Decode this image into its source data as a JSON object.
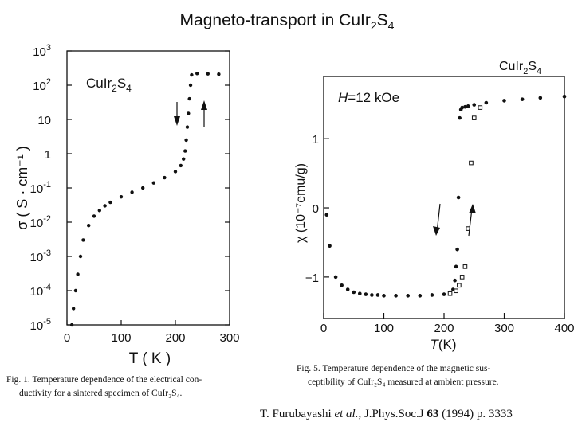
{
  "slide": {
    "title_prefix": "Magneto-transport in CuIr",
    "title_sub1": "2",
    "title_mid": "S",
    "title_sub2": "4",
    "citation_author": "T. Furubayashi",
    "citation_etal": " et al.",
    "citation_journal": ", J.Phys.Soc.J ",
    "citation_volume": "63",
    "citation_rest": " (1994) p. 3333"
  },
  "figure1": {
    "compound_main": "CuIr",
    "compound_sub1": "2",
    "compound_S": "S",
    "compound_sub2": "4",
    "ylabel": "σ ( S · cm⁻¹ )",
    "xlabel": "T ( K )",
    "caption_line1": "Fig. 1.   Temperature dependence of the electrical con-",
    "caption_line2": "ductivity for a sintered specimen of CuIr₂S₄."
  },
  "figure5": {
    "compound_main": "CuIr",
    "compound_sub1": "2",
    "compound_S": "S",
    "compound_sub2": "4",
    "field_H": "H",
    "field_rest": "=12 kOe",
    "ylabel": "χ (10⁻⁷emu/g)",
    "xlabel_T": "T",
    "xlabel_rest": "(K)",
    "caption_line1": "Fig. 5.   Temperature dependence of the magnetic sus-",
    "caption_line2": "ceptibility of CuIr₂S₄ measured at ambient pressure."
  },
  "chart_data": [
    {
      "type": "scatter",
      "title": "",
      "xlabel": "T ( K )",
      "ylabel": "σ ( S · cm⁻¹ )",
      "y_scale": "log",
      "xlim": [
        0,
        300
      ],
      "ylim": [
        1e-05,
        1000
      ],
      "x_ticks": [
        0,
        100,
        200,
        300
      ],
      "y_ticks": [
        {
          "value": 1000,
          "base": "10",
          "exp": "3"
        },
        {
          "value": 100,
          "base": "10",
          "exp": "2"
        },
        {
          "value": 10,
          "base": "10",
          "exp": ""
        },
        {
          "value": 1,
          "base": "1",
          "exp": ""
        },
        {
          "value": 0.1,
          "base": "10",
          "exp": "-1"
        },
        {
          "value": 0.01,
          "base": "10",
          "exp": "-2"
        },
        {
          "value": 0.001,
          "base": "10",
          "exp": "-3"
        },
        {
          "value": 0.0001,
          "base": "10",
          "exp": "-4"
        },
        {
          "value": 1e-05,
          "base": "10",
          "exp": "-5"
        }
      ],
      "grid": false,
      "series": [
        {
          "x": [
            9,
            12,
            16,
            20,
            25,
            30,
            40,
            50,
            60,
            70,
            80,
            100,
            120,
            140,
            160,
            180,
            200,
            210,
            215,
            218,
            220,
            222,
            224,
            226,
            228,
            230,
            240,
            260,
            280
          ],
          "y": [
            1e-05,
            3e-05,
            0.0001,
            0.0003,
            0.001,
            0.003,
            0.008,
            0.015,
            0.022,
            0.03,
            0.038,
            0.055,
            0.075,
            0.1,
            0.14,
            0.2,
            0.3,
            0.45,
            0.7,
            1.2,
            2.5,
            6,
            15,
            40,
            100,
            200,
            220,
            215,
            210
          ]
        }
      ]
    },
    {
      "type": "scatter",
      "title": "",
      "xlabel": "T(K)",
      "ylabel": "χ (10⁻⁷emu/g)",
      "xlim": [
        0,
        400
      ],
      "ylim": [
        -1.6,
        1.9
      ],
      "x_ticks": [
        0,
        100,
        200,
        300,
        400
      ],
      "y_ticks": [
        {
          "value": 1,
          "label": "1"
        },
        {
          "value": 0,
          "label": "0"
        },
        {
          "value": -1,
          "label": "−1"
        }
      ],
      "grid": false,
      "series": [
        {
          "marker": "filled-circle",
          "x": [
            5,
            10,
            20,
            30,
            40,
            50,
            60,
            70,
            80,
            90,
            100,
            120,
            140,
            160,
            180,
            200,
            210,
            215,
            218,
            220,
            222,
            224,
            226,
            228,
            230,
            235,
            240,
            250,
            270,
            300,
            330,
            360,
            400
          ],
          "y": [
            -0.1,
            -0.55,
            -1.0,
            -1.12,
            -1.18,
            -1.22,
            -1.24,
            -1.25,
            -1.26,
            -1.26,
            -1.27,
            -1.27,
            -1.27,
            -1.27,
            -1.26,
            -1.25,
            -1.22,
            -1.18,
            -1.05,
            -0.85,
            -0.6,
            0.15,
            1.3,
            1.42,
            1.45,
            1.46,
            1.47,
            1.49,
            1.52,
            1.55,
            1.57,
            1.59,
            1.61
          ]
        },
        {
          "marker": "open-square",
          "x": [
            210,
            220,
            225,
            230,
            235,
            240,
            245,
            250,
            260
          ],
          "y": [
            -1.24,
            -1.2,
            -1.12,
            -1.0,
            -0.85,
            -0.3,
            0.65,
            1.3,
            1.45
          ]
        }
      ]
    }
  ]
}
